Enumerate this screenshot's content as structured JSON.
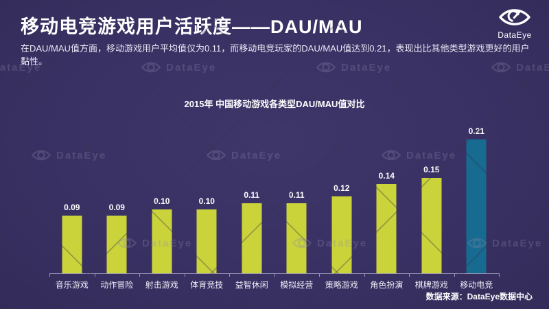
{
  "header": {
    "title": "移动电竞游戏用户活跃度——DAU/MAU",
    "subtitle": "在DAU/MAU值方面，移动游戏用户平均值仅为0.11，而移动电竞玩家的DAU/MAU值达到0.21，表现出比其他类型游戏更好的用户黏性。"
  },
  "brand": {
    "label": "DataEye",
    "icon": "dataeye-eye-icon"
  },
  "chart_data": {
    "type": "bar",
    "title": "2015年 中国移动游戏各类型DAU/MAU值对比",
    "categories": [
      "音乐游戏",
      "动作冒险",
      "射击游戏",
      "体育竞技",
      "益智休闲",
      "模拟经营",
      "策略游戏",
      "角色扮演",
      "棋牌游戏",
      "移动电竞"
    ],
    "values": [
      0.09,
      0.09,
      0.1,
      0.1,
      0.11,
      0.11,
      0.12,
      0.14,
      0.15,
      0.21
    ],
    "xlabel": "",
    "ylabel": "",
    "ylim": [
      0,
      0.22
    ],
    "grid": false,
    "legend": "none",
    "value_labels": "above-bars",
    "highlight_index": 9,
    "bar_color_default": "#cad339",
    "bar_color_highlight": "#176a90"
  },
  "footer": {
    "source": "数据来源：DataEye数据中心"
  },
  "watermark": {
    "label": "DataEye"
  },
  "theme": {
    "background": "#393163",
    "text": "#ffffff"
  }
}
